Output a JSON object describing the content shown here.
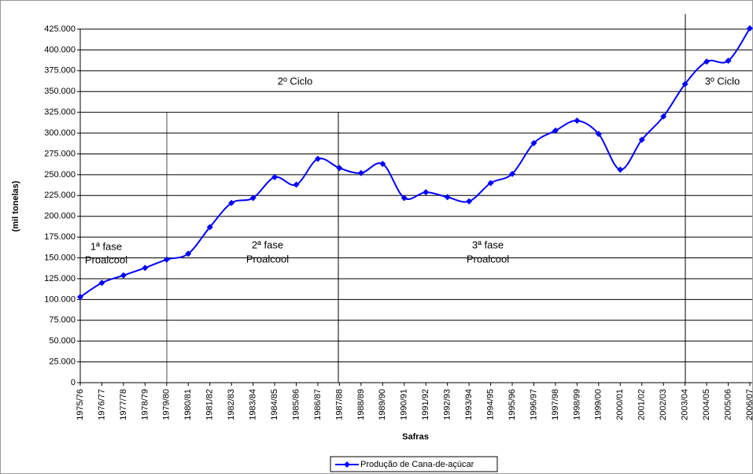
{
  "chart_data": {
    "type": "line",
    "y_label": "(mil tonelas)",
    "x_label": "Safras",
    "categories": [
      "1975/76",
      "1976/77",
      "1977/78",
      "1978/79",
      "1979/80",
      "1980/81",
      "1981/82",
      "1982/83",
      "1983/84",
      "1984/85",
      "1985/86",
      "1986/87",
      "1987/88",
      "1988/89",
      "1989/90",
      "1990/91",
      "1991/92",
      "1992/93",
      "1993/94",
      "1994/95",
      "1995/96",
      "1996/97",
      "1997/98",
      "1998/99",
      "1999/00",
      "2000/01",
      "2001/02",
      "2002/03",
      "2003/04",
      "2004/05",
      "2005/06",
      "2006/07"
    ],
    "series": [
      {
        "name": "Produção de Cana-de-açúcar",
        "color": "#0000ff",
        "values": [
          103000,
          120000,
          129000,
          138000,
          148000,
          155000,
          187000,
          216000,
          222000,
          247000,
          238000,
          269000,
          258000,
          252000,
          263000,
          222000,
          229000,
          223000,
          218000,
          240000,
          251000,
          288000,
          303000,
          315000,
          299000,
          256000,
          292000,
          320000,
          359000,
          386000,
          387000,
          426000
        ]
      }
    ],
    "ylim": [
      0,
      425000
    ],
    "yticks": [
      0,
      {
        "value": 25000,
        "label": "25.000"
      },
      {
        "value": 50000,
        "label": "50.000"
      },
      {
        "value": 75000,
        "label": "75.000"
      },
      {
        "value": 100000,
        "label": "100.000"
      },
      {
        "value": 125000,
        "label": "125.000"
      },
      {
        "value": 150000,
        "label": "150.000"
      },
      {
        "value": 175000,
        "label": "175.000"
      },
      {
        "value": 200000,
        "label": "200.000"
      },
      {
        "value": 225000,
        "label": "225.000"
      },
      {
        "value": 250000,
        "label": "250.000"
      },
      {
        "value": 275000,
        "label": "275.000"
      },
      {
        "value": 300000,
        "label": "300.000"
      },
      {
        "value": 325000,
        "label": "325.000"
      },
      {
        "value": 350000,
        "label": "350.000"
      },
      {
        "value": 375000,
        "label": "375.000"
      },
      {
        "value": 400000,
        "label": "400.000"
      },
      {
        "value": 425000,
        "label": "425.000"
      }
    ],
    "grid": true,
    "legend": "bottom",
    "annotations": [
      "2º Ciclo",
      "3º Ciclo",
      "1ª fase",
      "Proalcool",
      "2ª fase",
      "Proalcool",
      "3ª fase",
      "Proalcool"
    ]
  }
}
